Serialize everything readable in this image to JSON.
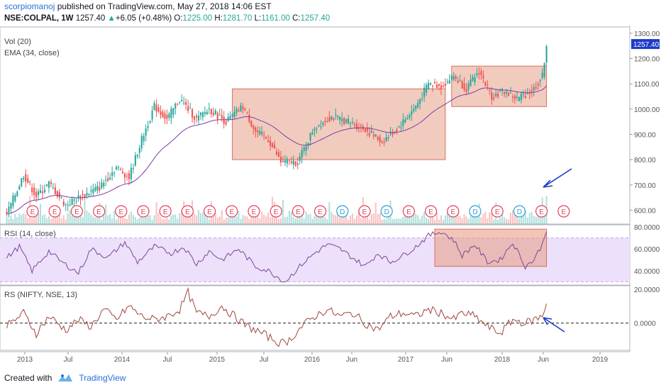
{
  "header": {
    "author": "scorpiomanoj",
    "published": "published on TradingView.com, May 27, 2018 14:06 EST",
    "symbol": "NSE:COLPAL, 1W",
    "last": "1257.40",
    "change": "+6.05 (+0.48%)",
    "o_label": "O:",
    "o": "1225.00",
    "h_label": "H:",
    "h": "1281.70",
    "l_label": "L:",
    "l": "1161.00",
    "c_label": "C:",
    "c": "1257.40"
  },
  "footer": {
    "created": "Created with",
    "brand": "TradingView"
  },
  "colors": {
    "up": "#26a69a",
    "down": "#ef5350",
    "ema": "#7b3fa0",
    "rsi": "#7e4696",
    "rs": "#a0453c",
    "box": "#e8a08a",
    "arrow": "#1e3cc8",
    "price_badge": "#1e3cc8"
  },
  "chart_data": [
    {
      "type": "candlestick",
      "indicators": [
        "Vol (20)",
        "EMA (34, close)"
      ],
      "y_ticks": [
        "1300.00",
        "1200.00",
        "1100.00",
        "1000.00",
        "900.00",
        "800.00",
        "700.00",
        "600.00"
      ],
      "ylim": [
        545,
        1325
      ],
      "last_price_label": "1257.40",
      "x_ticks": [
        "2013",
        "Jul",
        "2014",
        "Jul",
        "2015",
        "Jul",
        "2016",
        "Jun",
        "2017",
        "Jun",
        "2018",
        "Jun",
        "2019"
      ],
      "anchors": [
        [
          0,
          585
        ],
        [
          8,
          740
        ],
        [
          14,
          655
        ],
        [
          20,
          705
        ],
        [
          28,
          620
        ],
        [
          34,
          650
        ],
        [
          44,
          690
        ],
        [
          52,
          770
        ],
        [
          58,
          730
        ],
        [
          64,
          880
        ],
        [
          70,
          1010
        ],
        [
          76,
          960
        ],
        [
          82,
          1040
        ],
        [
          90,
          960
        ],
        [
          96,
          1000
        ],
        [
          104,
          950
        ],
        [
          112,
          1010
        ],
        [
          118,
          910
        ],
        [
          124,
          880
        ],
        [
          130,
          790
        ],
        [
          138,
          790
        ],
        [
          146,
          930
        ],
        [
          154,
          970
        ],
        [
          162,
          950
        ],
        [
          170,
          920
        ],
        [
          178,
          870
        ],
        [
          186,
          930
        ],
        [
          194,
          1010
        ],
        [
          200,
          1100
        ],
        [
          206,
          1090
        ],
        [
          212,
          1130
        ],
        [
          218,
          1080
        ],
        [
          224,
          1150
        ],
        [
          230,
          1050
        ],
        [
          236,
          1070
        ],
        [
          242,
          1040
        ],
        [
          250,
          1080
        ],
        [
          254,
          1130
        ],
        [
          256,
          1257
        ]
      ],
      "event_markers": [
        "E",
        "E",
        "E",
        "E",
        "E",
        "E",
        "E",
        "E",
        "E",
        "E",
        "E",
        "E",
        "E",
        "E",
        "D",
        "E",
        "D",
        "E",
        "E",
        "E",
        "D",
        "E",
        "D",
        "E",
        "E"
      ],
      "annotation_boxes": [
        {
          "x_range": [
            107,
            208
          ],
          "y_range": [
            800,
            1080
          ]
        },
        {
          "x_range": [
            211,
            256
          ],
          "y_range": [
            1010,
            1170
          ]
        }
      ]
    },
    {
      "type": "line",
      "name": "RSI (14, close)",
      "y_ticks": [
        "80.0000",
        "60.0000",
        "40.0000"
      ],
      "ylim": [
        27,
        82
      ],
      "band": [
        30,
        70
      ],
      "anchors": [
        [
          0,
          52
        ],
        [
          6,
          62
        ],
        [
          12,
          40
        ],
        [
          20,
          58
        ],
        [
          26,
          48
        ],
        [
          34,
          38
        ],
        [
          40,
          60
        ],
        [
          48,
          52
        ],
        [
          56,
          66
        ],
        [
          62,
          48
        ],
        [
          70,
          62
        ],
        [
          78,
          56
        ],
        [
          84,
          62
        ],
        [
          90,
          46
        ],
        [
          96,
          58
        ],
        [
          102,
          50
        ],
        [
          110,
          60
        ],
        [
          118,
          44
        ],
        [
          124,
          40
        ],
        [
          132,
          30
        ],
        [
          140,
          46
        ],
        [
          146,
          56
        ],
        [
          152,
          64
        ],
        [
          158,
          60
        ],
        [
          164,
          52
        ],
        [
          170,
          44
        ],
        [
          176,
          56
        ],
        [
          182,
          48
        ],
        [
          188,
          54
        ],
        [
          194,
          62
        ],
        [
          200,
          72
        ],
        [
          206,
          76
        ],
        [
          212,
          68
        ],
        [
          216,
          54
        ],
        [
          222,
          64
        ],
        [
          228,
          48
        ],
        [
          234,
          50
        ],
        [
          240,
          66
        ],
        [
          246,
          44
        ],
        [
          250,
          50
        ],
        [
          254,
          64
        ],
        [
          256,
          78
        ]
      ],
      "annotation_box": {
        "x_range": [
          203,
          256
        ],
        "y_range": [
          44,
          78
        ]
      }
    },
    {
      "type": "line",
      "name": "RS (NIFTY, NSE, 13)",
      "y_ticks": [
        "20.0000",
        "0.0000"
      ],
      "ylim": [
        -16,
        22
      ],
      "reference_line": 0,
      "anchors": [
        [
          0,
          -2
        ],
        [
          4,
          2
        ],
        [
          8,
          6
        ],
        [
          14,
          -6
        ],
        [
          20,
          4
        ],
        [
          28,
          -4
        ],
        [
          34,
          2
        ],
        [
          40,
          -2
        ],
        [
          46,
          8
        ],
        [
          52,
          2
        ],
        [
          58,
          10
        ],
        [
          64,
          4
        ],
        [
          70,
          2
        ],
        [
          76,
          4
        ],
        [
          82,
          8
        ],
        [
          86,
          18
        ],
        [
          90,
          6
        ],
        [
          96,
          4
        ],
        [
          102,
          10
        ],
        [
          108,
          4
        ],
        [
          114,
          -2
        ],
        [
          118,
          -4
        ],
        [
          124,
          -8
        ],
        [
          130,
          -12
        ],
        [
          134,
          -10
        ],
        [
          140,
          -2
        ],
        [
          146,
          4
        ],
        [
          152,
          8
        ],
        [
          158,
          4
        ],
        [
          164,
          6
        ],
        [
          170,
          0
        ],
        [
          176,
          -4
        ],
        [
          182,
          4
        ],
        [
          188,
          6
        ],
        [
          194,
          4
        ],
        [
          200,
          8
        ],
        [
          206,
          6
        ],
        [
          212,
          2
        ],
        [
          216,
          6
        ],
        [
          222,
          4
        ],
        [
          228,
          -2
        ],
        [
          234,
          -6
        ],
        [
          240,
          2
        ],
        [
          246,
          0
        ],
        [
          250,
          2
        ],
        [
          254,
          4
        ],
        [
          256,
          12
        ]
      ]
    }
  ]
}
